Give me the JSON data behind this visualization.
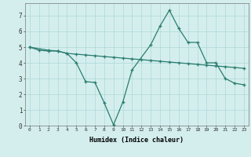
{
  "line1_x": [
    0,
    1,
    2,
    3,
    4,
    5,
    6,
    7,
    8,
    9,
    10,
    11,
    12,
    13,
    14,
    15,
    16,
    17,
    18,
    19,
    20,
    21,
    22,
    23
  ],
  "line1_y": [
    5.0,
    4.8,
    4.75,
    4.75,
    4.6,
    4.55,
    4.5,
    4.45,
    4.4,
    4.35,
    4.3,
    4.25,
    4.2,
    4.15,
    4.1,
    4.05,
    4.0,
    3.95,
    3.9,
    3.85,
    3.8,
    3.75,
    3.7,
    3.65
  ],
  "line2_x": [
    0,
    2,
    3,
    4,
    5,
    6,
    7,
    8,
    9,
    10,
    11,
    13,
    14,
    15,
    16,
    17,
    18,
    19,
    20,
    21,
    22,
    23
  ],
  "line2_y": [
    5.0,
    4.8,
    4.75,
    4.6,
    4.0,
    2.8,
    2.75,
    1.45,
    0.05,
    1.5,
    3.55,
    5.15,
    6.35,
    7.35,
    6.2,
    5.3,
    5.3,
    4.0,
    4.0,
    3.0,
    2.7,
    2.6
  ],
  "color": "#2a7d6e",
  "bg_color": "#d4eeee",
  "grid_color": "#aed8d8",
  "xlabel": "Humidex (Indice chaleur)",
  "ylim": [
    0,
    7.8
  ],
  "xlim": [
    -0.5,
    23.5
  ],
  "yticks": [
    0,
    1,
    2,
    3,
    4,
    5,
    6,
    7
  ],
  "xticks": [
    0,
    1,
    2,
    3,
    4,
    5,
    6,
    7,
    8,
    9,
    10,
    11,
    12,
    13,
    14,
    15,
    16,
    17,
    18,
    19,
    20,
    21,
    22,
    23
  ],
  "xtick_labels": [
    "0",
    "1",
    "2",
    "3",
    "4",
    "5",
    "6",
    "7",
    "8",
    "9",
    "10",
    "11",
    "12",
    "13",
    "14",
    "15",
    "16",
    "17",
    "18",
    "19",
    "20",
    "21",
    "22",
    "23"
  ]
}
